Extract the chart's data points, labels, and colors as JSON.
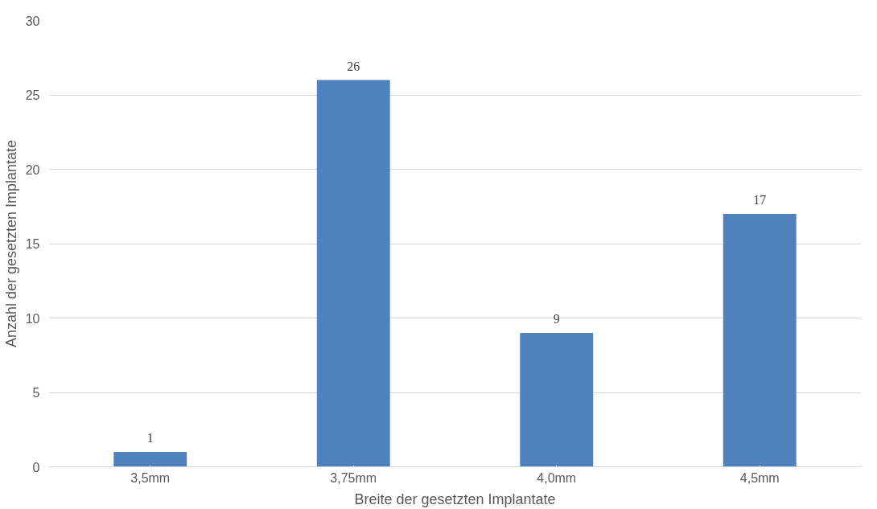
{
  "chart_data": {
    "type": "bar",
    "xlabel": "Breite der gesetzten Implantate",
    "ylabel": "Anzahl der gesetzten Implantate",
    "categories": [
      "3,5mm",
      "3,75mm",
      "4,0mm",
      "4,5mm"
    ],
    "values": [
      1,
      26,
      9,
      17
    ],
    "color": "#4f81bd",
    "ylim": [
      0,
      30
    ],
    "yticks": [
      0,
      5,
      10,
      15,
      20,
      25,
      30
    ],
    "grid": "y",
    "data_labels": true
  }
}
